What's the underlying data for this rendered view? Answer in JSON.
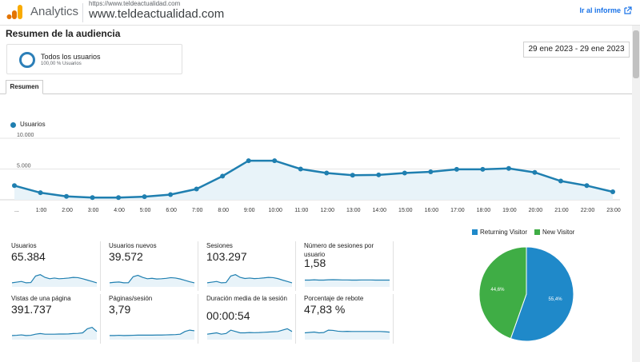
{
  "header": {
    "brand": "Analytics",
    "site_url_small": "https://www.teldeactualidad.com",
    "site_name": "www.teldeactualidad.com",
    "goto_report": "Ir al informe"
  },
  "page": {
    "title": "Resumen de la audiencia",
    "segment_name": "Todos los usuarios",
    "segment_sub": "100,00 % Usuarios",
    "date_range": "29 ene 2023 - 29 ene 2023",
    "tab": "Resumen",
    "legend_label": "Usuarios"
  },
  "colors": {
    "accent": "#1a73e8",
    "line": "#1f7fb0",
    "returning": "#1f89c9",
    "new": "#3fad45"
  },
  "chart_data": {
    "type": "line",
    "series": [
      {
        "name": "Usuarios",
        "values": [
          2300,
          1150,
          550,
          350,
          350,
          500,
          850,
          1750,
          3850,
          6350,
          6350,
          5000,
          4350,
          4000,
          4050,
          4350,
          4550,
          4950,
          4950,
          5100,
          4450,
          3050,
          2300,
          1300
        ]
      }
    ],
    "x": [
      "...",
      "1:00",
      "2:00",
      "3:00",
      "4:00",
      "5:00",
      "6:00",
      "7:00",
      "8:00",
      "9:00",
      "10:00",
      "11:00",
      "12:00",
      "13:00",
      "14:00",
      "15:00",
      "16:00",
      "17:00",
      "18:00",
      "19:00",
      "20:00",
      "21:00",
      "22:00",
      "23:00"
    ],
    "yticks": [
      "10.000",
      "5.000"
    ],
    "ylim": [
      0,
      10000
    ],
    "grid": true
  },
  "metrics": [
    {
      "label": "Usuarios",
      "value": "65.384",
      "spark": [
        3,
        3.5,
        4,
        3,
        3.2,
        8,
        9,
        7,
        6,
        6.5,
        6,
        6.2,
        6.5,
        7,
        6.8,
        6,
        5,
        4,
        3
      ]
    },
    {
      "label": "Usuarios nuevos",
      "value": "39.572",
      "spark": [
        3,
        3.4,
        3.6,
        3,
        3.1,
        7.5,
        8.5,
        7,
        6,
        6.3,
        5.8,
        6,
        6.3,
        6.8,
        6.5,
        5.8,
        4.8,
        3.8,
        3
      ]
    },
    {
      "label": "Sesiones",
      "value": "103.297",
      "spark": [
        3,
        3.5,
        4,
        3,
        3.2,
        8,
        9,
        7,
        6.2,
        6.5,
        6.1,
        6.3,
        6.6,
        7,
        6.8,
        6.1,
        5,
        4,
        3
      ]
    },
    {
      "label": "Número de sesiones por usuario",
      "value": "1,58",
      "spark": [
        5,
        5,
        5.2,
        5,
        5,
        5.2,
        5.3,
        5.2,
        5.1,
        5.1,
        5,
        5,
        5.1,
        5.1,
        5.1,
        5,
        5,
        5,
        5
      ]
    },
    {
      "label": "Vistas de una página",
      "value": "391.737",
      "spark": [
        3,
        3.2,
        3.5,
        3,
        3.2,
        4,
        4.5,
        4,
        4,
        4,
        4.1,
        4.1,
        4.2,
        4.5,
        4.6,
        5,
        8,
        9,
        6
      ]
    },
    {
      "label": "Páginas/sesión",
      "value": "3,79",
      "spark": [
        3,
        3,
        3.2,
        3,
        3.1,
        3.2,
        3.3,
        3.3,
        3.3,
        3.3,
        3.4,
        3.4,
        3.5,
        3.6,
        3.7,
        4,
        6,
        7,
        6.5
      ]
    },
    {
      "label": "Duración media de la sesión",
      "value": "00:00:54",
      "spark": [
        4,
        4.5,
        5,
        4,
        4.5,
        7,
        6,
        5,
        5,
        5.2,
        5.1,
        5.2,
        5.4,
        5.6,
        5.8,
        6,
        7,
        8,
        6
      ]
    },
    {
      "label": "Porcentaje de rebote",
      "value": "47,83 %",
      "spark": [
        5,
        5.3,
        5.6,
        5,
        5.2,
        7,
        6.8,
        6.2,
        6,
        6.1,
        6,
        6,
        6,
        6,
        6,
        6,
        6,
        5.8,
        5.5
      ]
    }
  ],
  "pie": {
    "legend": [
      "Returning Visitor",
      "New Visitor"
    ],
    "slices": [
      55.4,
      44.6
    ],
    "labels": [
      "55,4%",
      "44,6%"
    ]
  }
}
